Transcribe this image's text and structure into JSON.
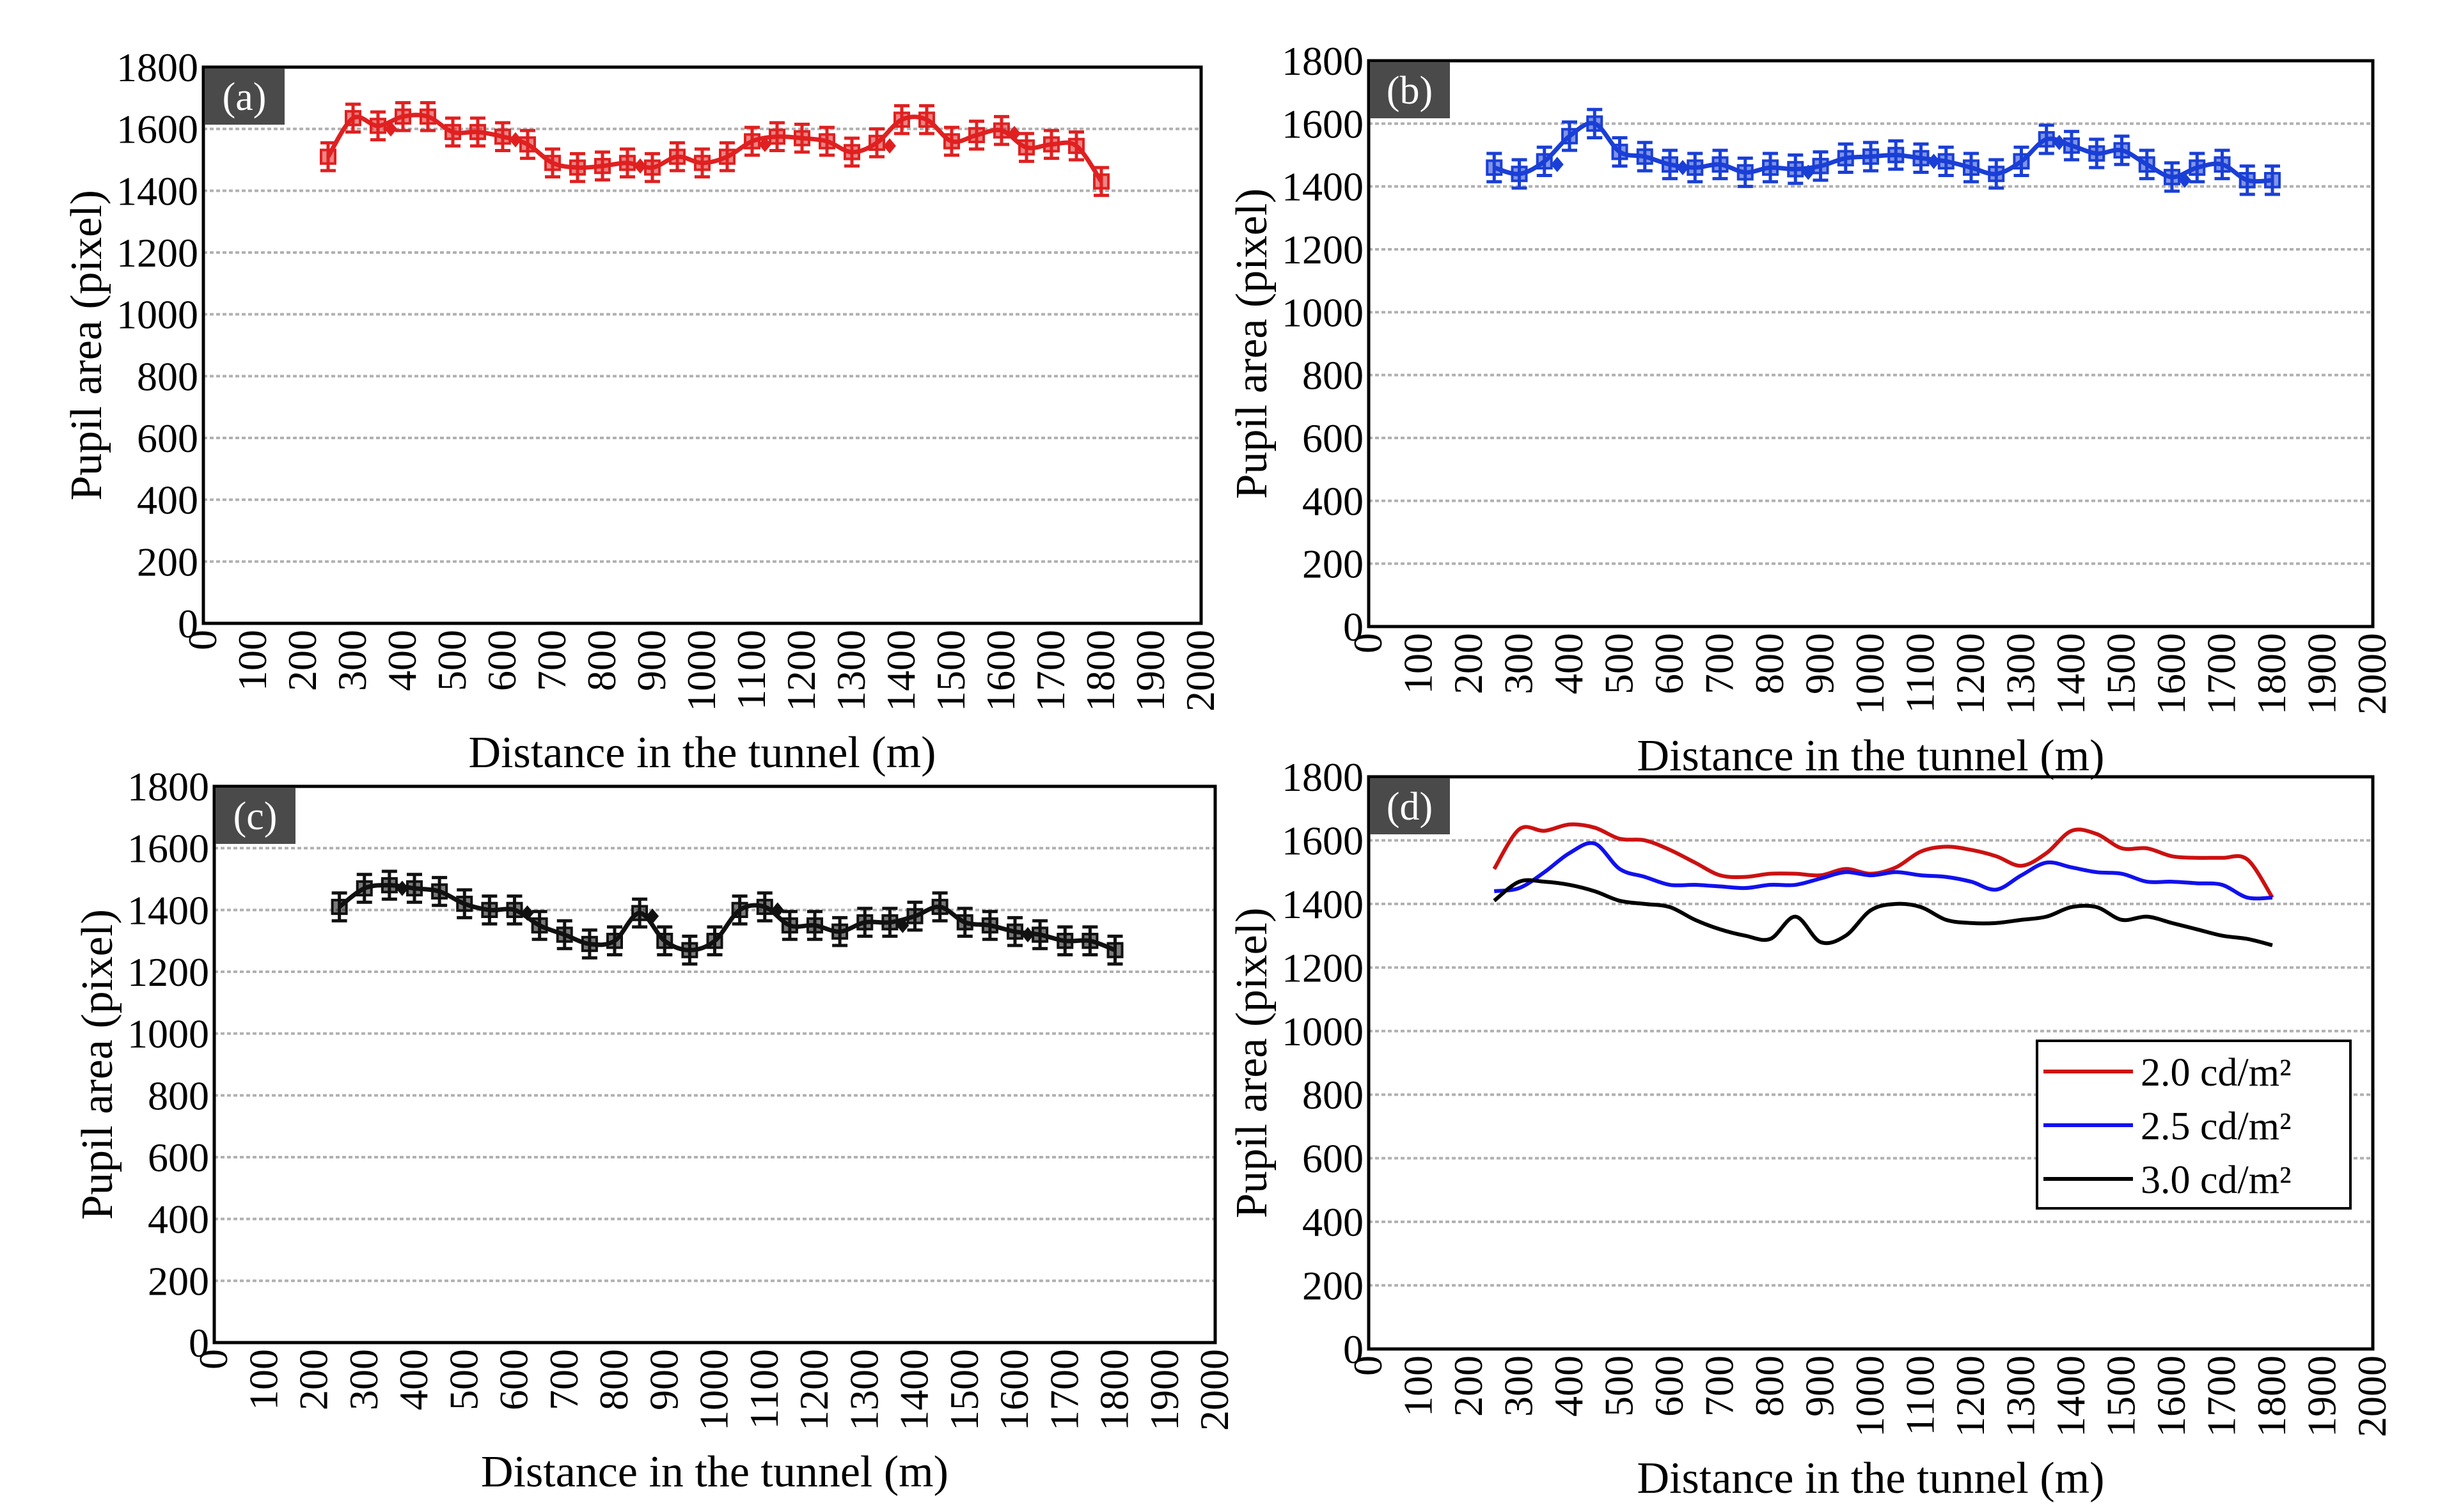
{
  "figure": {
    "x_ticks": [
      "0",
      "100",
      "200",
      "300",
      "400",
      "500",
      "600",
      "700",
      "800",
      "900",
      "1000",
      "1100",
      "1200",
      "1300",
      "1400",
      "1500",
      "1600",
      "1700",
      "1800",
      "1900",
      "2000"
    ],
    "y_ticks": [
      "0",
      "200",
      "400",
      "600",
      "800",
      "1000",
      "1200",
      "1400",
      "1600",
      "1800"
    ],
    "xlabel": "Distance in the tunnel (m)",
    "ylabel": "Pupil area (pixel)"
  },
  "chart_data": [
    {
      "type": "box",
      "panel": "(a)",
      "color": "#e02020",
      "xlabel": "Distance in the tunnel (m)",
      "ylabel": "Pupil area (pixel)",
      "xlim": [
        0,
        2000
      ],
      "ylim": [
        0,
        1800
      ],
      "grid": true,
      "x": [
        250,
        300,
        350,
        400,
        450,
        500,
        550,
        600,
        650,
        700,
        750,
        800,
        850,
        900,
        950,
        1000,
        1050,
        1100,
        1150,
        1200,
        1250,
        1300,
        1350,
        1400,
        1450,
        1500,
        1550,
        1600,
        1650,
        1700,
        1750,
        1800
      ],
      "values": [
        1510,
        1635,
        1610,
        1640,
        1640,
        1590,
        1590,
        1575,
        1550,
        1490,
        1475,
        1480,
        1490,
        1475,
        1510,
        1490,
        1510,
        1560,
        1575,
        1570,
        1560,
        1525,
        1555,
        1630,
        1630,
        1560,
        1580,
        1595,
        1540,
        1550,
        1545,
        1430
      ]
    },
    {
      "type": "box",
      "panel": "(b)",
      "color": "#1a3fd6",
      "xlabel": "Distance in the tunnel (m)",
      "ylabel": "Pupil area (pixel)",
      "xlim": [
        0,
        2000
      ],
      "ylim": [
        0,
        1800
      ],
      "grid": true,
      "x": [
        250,
        300,
        350,
        400,
        450,
        500,
        550,
        600,
        650,
        700,
        750,
        800,
        850,
        900,
        950,
        1000,
        1050,
        1100,
        1150,
        1200,
        1250,
        1300,
        1350,
        1400,
        1450,
        1500,
        1550,
        1600,
        1650,
        1700,
        1750,
        1800
      ],
      "values": [
        1460,
        1440,
        1480,
        1560,
        1600,
        1510,
        1495,
        1470,
        1460,
        1470,
        1445,
        1460,
        1455,
        1465,
        1490,
        1495,
        1500,
        1490,
        1480,
        1460,
        1440,
        1480,
        1550,
        1530,
        1505,
        1515,
        1470,
        1430,
        1460,
        1470,
        1420,
        1420
      ]
    },
    {
      "type": "box",
      "panel": "(c)",
      "color": "#111111",
      "xlabel": "Distance in the tunnel (m)",
      "ylabel": "Pupil area (pixel)",
      "xlim": [
        0,
        2000
      ],
      "ylim": [
        0,
        1800
      ],
      "grid": true,
      "x": [
        250,
        300,
        350,
        400,
        450,
        500,
        550,
        600,
        650,
        700,
        750,
        800,
        850,
        900,
        950,
        1000,
        1050,
        1100,
        1150,
        1200,
        1250,
        1300,
        1350,
        1400,
        1450,
        1500,
        1550,
        1600,
        1650,
        1700,
        1750,
        1800
      ],
      "values": [
        1410,
        1470,
        1480,
        1470,
        1460,
        1420,
        1400,
        1400,
        1350,
        1320,
        1290,
        1300,
        1390,
        1300,
        1270,
        1300,
        1400,
        1410,
        1350,
        1350,
        1330,
        1360,
        1360,
        1380,
        1410,
        1360,
        1350,
        1330,
        1320,
        1300,
        1300,
        1270
      ]
    },
    {
      "type": "line",
      "panel": "(d)",
      "xlabel": "Distance in the tunnel (m)",
      "ylabel": "Pupil area (pixel)",
      "xlim": [
        0,
        2000
      ],
      "ylim": [
        0,
        1800
      ],
      "grid": true,
      "legend_position": "center-right",
      "x": [
        250,
        300,
        350,
        400,
        450,
        500,
        550,
        600,
        650,
        700,
        750,
        800,
        850,
        900,
        950,
        1000,
        1050,
        1100,
        1150,
        1200,
        1250,
        1300,
        1350,
        1400,
        1450,
        1500,
        1550,
        1600,
        1650,
        1700,
        1750,
        1800
      ],
      "series": [
        {
          "name": "2.0 cd/m²",
          "color": "#cc1111",
          "values": [
            1510,
            1635,
            1630,
            1650,
            1640,
            1605,
            1600,
            1570,
            1530,
            1490,
            1485,
            1495,
            1495,
            1490,
            1510,
            1495,
            1515,
            1565,
            1580,
            1570,
            1550,
            1520,
            1560,
            1630,
            1620,
            1575,
            1575,
            1550,
            1545,
            1545,
            1540,
            1420
          ]
        },
        {
          "name": "2.5 cd/m²",
          "color": "#1111ee",
          "values": [
            1440,
            1450,
            1500,
            1560,
            1590,
            1510,
            1485,
            1460,
            1460,
            1455,
            1450,
            1460,
            1460,
            1480,
            1500,
            1490,
            1500,
            1490,
            1485,
            1470,
            1445,
            1490,
            1530,
            1515,
            1500,
            1495,
            1470,
            1470,
            1465,
            1460,
            1420,
            1420
          ]
        },
        {
          "name": "3.0 cd/m²",
          "color": "#000000",
          "values": [
            1410,
            1470,
            1470,
            1460,
            1440,
            1410,
            1400,
            1390,
            1350,
            1320,
            1300,
            1290,
            1360,
            1280,
            1300,
            1380,
            1400,
            1390,
            1350,
            1340,
            1340,
            1350,
            1360,
            1390,
            1390,
            1350,
            1360,
            1340,
            1320,
            1300,
            1290,
            1270
          ]
        }
      ]
    }
  ]
}
